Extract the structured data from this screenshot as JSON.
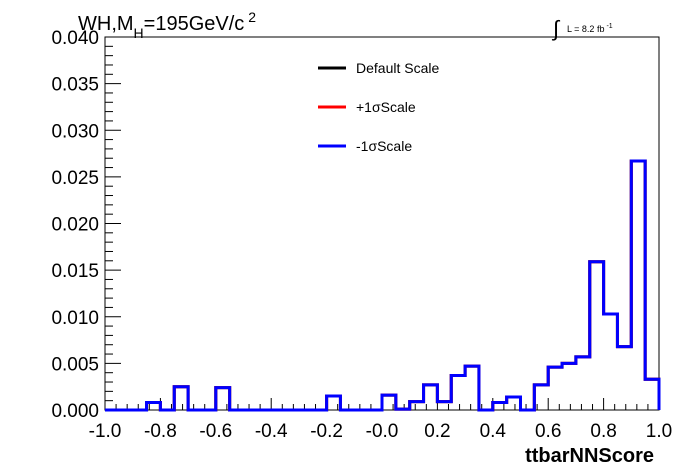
{
  "chart_data": {
    "type": "line",
    "title": {
      "prefix": "WH,M",
      "subscript": "H",
      "main": "=195GeV/c",
      "superscript": "2"
    },
    "lumi": {
      "symbol": "∫",
      "text": "L = 8.2 fb",
      "superscript": "-1"
    },
    "xlabel": "ttbarNNScore",
    "ylabel": "",
    "xlim": [
      -1.0,
      1.0
    ],
    "ylim": [
      0.0,
      0.04
    ],
    "x_ticks": [
      "-1.0",
      "-0.8",
      "-0.6",
      "-0.4",
      "-0.2",
      "-0.0",
      "0.2",
      "0.4",
      "0.6",
      "0.8",
      "1.0"
    ],
    "y_ticks": [
      "0.000",
      "0.005",
      "0.010",
      "0.015",
      "0.020",
      "0.025",
      "0.030",
      "0.035",
      "0.040"
    ],
    "legend": {
      "position": "top-center",
      "entries": [
        {
          "label": "Default Scale",
          "color": "#000000"
        },
        {
          "label": "+1σScale",
          "color": "#ff0000"
        },
        {
          "label": "-1σScale",
          "color": "#0000ff"
        }
      ]
    },
    "bin_edges": [
      -1.0,
      -0.95,
      -0.9,
      -0.85,
      -0.8,
      -0.75,
      -0.7,
      -0.65,
      -0.6,
      -0.55,
      -0.5,
      -0.45,
      -0.4,
      -0.35,
      -0.3,
      -0.25,
      -0.2,
      -0.15,
      -0.1,
      -0.05,
      0.0,
      0.05,
      0.1,
      0.15,
      0.2,
      0.25,
      0.3,
      0.35,
      0.4,
      0.45,
      0.5,
      0.55,
      0.6,
      0.65,
      0.7,
      0.75,
      0.8,
      0.85,
      0.9,
      0.95,
      1.0
    ],
    "series": [
      {
        "name": "Default Scale",
        "color": "#000000",
        "values": [
          0,
          0,
          0,
          0.0008,
          0,
          0.0025,
          0,
          0,
          0.0024,
          0,
          0,
          0,
          0,
          0,
          0,
          0,
          0.0015,
          0,
          0,
          0,
          0.0016,
          0.0001,
          0.0009,
          0.0027,
          0.0009,
          0.0037,
          0.0047,
          0,
          0.0008,
          0.0014,
          0,
          0.0027,
          0.0046,
          0.005,
          0.0057,
          0.0159,
          0.0103,
          0.0068,
          0.0267,
          0.0033
        ]
      },
      {
        "name": "+1σScale",
        "color": "#ff0000",
        "values": [
          0,
          0,
          0,
          0.0008,
          0,
          0.0025,
          0,
          0,
          0.0024,
          0,
          0,
          0,
          0,
          0,
          0,
          0,
          0.0015,
          0,
          0,
          0,
          0.0016,
          0.0001,
          0.0009,
          0.0027,
          0.0009,
          0.0037,
          0.0047,
          0,
          0.0008,
          0.0014,
          0,
          0.0027,
          0.0046,
          0.005,
          0.0057,
          0.0159,
          0.0103,
          0.0068,
          0.0267,
          0.0033
        ]
      },
      {
        "name": "-1σScale",
        "color": "#0000ff",
        "values": [
          0,
          0,
          0,
          0.0008,
          0,
          0.0025,
          0,
          0,
          0.0024,
          0,
          0,
          0,
          0,
          0,
          0,
          0,
          0.0015,
          0,
          0,
          0,
          0.0016,
          0.0001,
          0.0009,
          0.0027,
          0.0009,
          0.0037,
          0.0047,
          0,
          0.0008,
          0.0014,
          0,
          0.0027,
          0.0046,
          0.005,
          0.0057,
          0.0159,
          0.0103,
          0.0068,
          0.0267,
          0.0033
        ]
      }
    ]
  }
}
